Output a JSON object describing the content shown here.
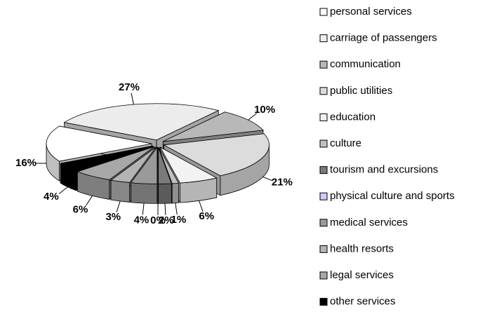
{
  "chart_data": {
    "type": "pie3d",
    "categories": [
      "personal services",
      "carriage of passengers",
      "communication",
      "public utilities",
      "education",
      "culture",
      "tourism and excursions",
      "physical culture and sports",
      "medical services",
      "health resorts",
      "legal services",
      "other services"
    ],
    "values": [
      16,
      27,
      10,
      21,
      6,
      1,
      2,
      0,
      4,
      3,
      6,
      4
    ],
    "value_labels": [
      "16%",
      "27%",
      "10%",
      "21%",
      "6%",
      "1%",
      "2%",
      "0%",
      "4%",
      "3%",
      "6%",
      "4%"
    ],
    "colors": [
      "#ffffff",
      "#ececec",
      "#b8b8b8",
      "#dcdcdc",
      "#f2f2f2",
      "#c0c0c0",
      "#7a7a7a",
      "#ccccff",
      "#9a9a9a",
      "#b4b4b4",
      "#a8a8a8",
      "#000000"
    ],
    "legend": "right"
  }
}
